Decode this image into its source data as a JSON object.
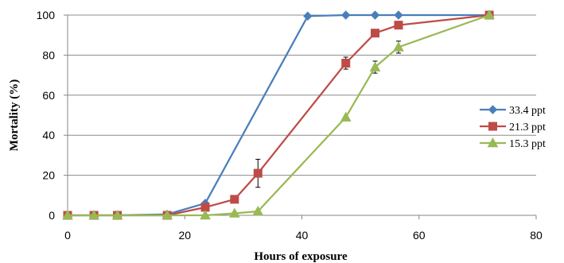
{
  "chart_data": {
    "type": "line",
    "title": "",
    "xlabel": "Hours of exposure",
    "ylabel": "Mortality (%)",
    "xlim": [
      0,
      80
    ],
    "ylim": [
      0,
      100
    ],
    "xticks": [
      0,
      20,
      40,
      60,
      80
    ],
    "yticks": [
      0,
      20,
      40,
      60,
      80,
      100
    ],
    "grid": "horizontal",
    "legend_position": "right",
    "series": [
      {
        "name": "33.4 ppt",
        "color": "#4a7ebb",
        "marker": "diamond",
        "x": [
          0,
          4.5,
          8.5,
          17,
          23.5,
          41,
          47.5,
          52.5,
          56.5,
          72
        ],
        "y": [
          0,
          0,
          0,
          0.5,
          6,
          99.5,
          100,
          100,
          100,
          100
        ],
        "err": [
          0,
          0,
          0,
          0,
          0,
          0,
          0,
          0,
          0,
          0
        ]
      },
      {
        "name": "21.3 ppt",
        "color": "#be4b48",
        "marker": "square",
        "x": [
          0,
          4.5,
          8.5,
          17,
          23.5,
          28.5,
          32.5,
          47.5,
          52.5,
          56.5,
          72
        ],
        "y": [
          0,
          0,
          0,
          0,
          4,
          8,
          21,
          76,
          91,
          95,
          100
        ],
        "err": [
          0,
          0,
          0,
          0,
          0,
          0,
          7,
          3,
          0,
          0,
          0
        ]
      },
      {
        "name": "15.3 ppt",
        "color": "#98b954",
        "marker": "triangle",
        "x": [
          0,
          4.5,
          8.5,
          17,
          23.5,
          28.5,
          32.5,
          47.5,
          52.5,
          56.5,
          72
        ],
        "y": [
          0,
          0,
          0,
          0,
          0,
          1,
          2,
          49,
          74,
          84,
          100
        ],
        "err": [
          0,
          0,
          0,
          0,
          0,
          0,
          0,
          0,
          3,
          3,
          0
        ]
      }
    ]
  }
}
